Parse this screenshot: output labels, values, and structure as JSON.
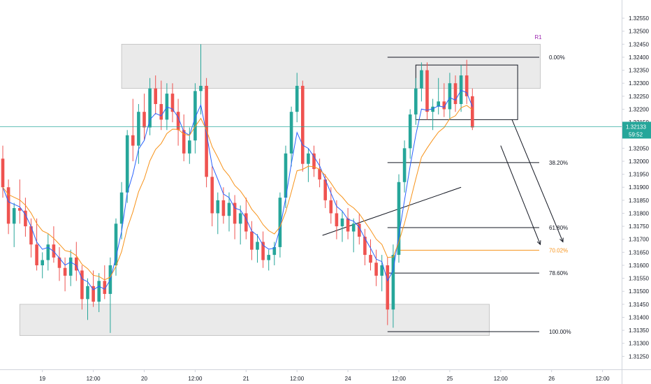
{
  "chart_data": {
    "type": "candlestick",
    "colors": {
      "up": "#26a69a",
      "down": "#ef5350",
      "ma_fast": "#2962ff",
      "ma_slow": "#f7931a",
      "zone": "#e6e6e6",
      "price_line": "#26a69a",
      "fib_orange": "#f7931a",
      "pivot": "#9c27b0"
    },
    "y_axis": {
      "range": [
        1.312,
        1.3262
      ],
      "ticks": [
        "1.32550",
        "1.32500",
        "1.32450",
        "1.32400",
        "1.32350",
        "1.32300",
        "1.32250",
        "1.32200",
        "1.32150",
        "1.32100",
        "1.32050",
        "1.32000",
        "1.31950",
        "1.31900",
        "1.31850",
        "1.31800",
        "1.31750",
        "1.31700",
        "1.31650",
        "1.31600",
        "1.31550",
        "1.31500",
        "1.31450",
        "1.31400",
        "1.31350",
        "1.31300",
        "1.31250"
      ],
      "current_price": "1.32133",
      "current_price_value": 1.32133,
      "countdown": "59:52"
    },
    "x_axis": {
      "labels": [
        "19",
        "12:00",
        "20",
        "12:00",
        "21",
        "12:00",
        "24",
        "12:00",
        "25",
        "12:00",
        "26",
        "12:00"
      ],
      "label_bars": [
        7,
        16,
        25,
        34,
        43,
        52,
        61,
        70,
        79,
        88,
        97,
        106
      ]
    },
    "zones": [
      {
        "name": "resistance",
        "bar_from": 21,
        "bar_to": 95,
        "low": 1.3228,
        "high": 1.3245
      },
      {
        "name": "support",
        "bar_from": 3,
        "bar_to": 86,
        "low": 1.3133,
        "high": 1.3145
      }
    ],
    "pivot_label": {
      "text": "R1",
      "bar": 94,
      "price": 1.3247
    },
    "fibonacci": [
      {
        "label": "0.00%",
        "price": 1.324,
        "bar_from": 68,
        "color": "#131722"
      },
      {
        "label": "38.20%",
        "price": 1.31995,
        "bar_from": 68,
        "color": "#131722"
      },
      {
        "label": "61.80%",
        "price": 1.31745,
        "bar_from": 68,
        "color": "#131722"
      },
      {
        "label": "70.02%",
        "price": 1.31658,
        "bar_from": 70,
        "color": "#f7931a"
      },
      {
        "label": "78.60%",
        "price": 1.3157,
        "bar_from": 68,
        "color": "#131722"
      },
      {
        "label": "100.00%",
        "price": 1.31345,
        "bar_from": 68,
        "color": "#131722"
      }
    ],
    "box": {
      "bar_from": 73,
      "bar_to": 91,
      "low": 1.3216,
      "high": 1.3237
    },
    "trendline": {
      "bar_from": 56.5,
      "price_from": 1.31715,
      "bar_to": 81,
      "price_to": 1.319
    },
    "arrows": [
      {
        "bar_from": 90,
        "price_from": 1.3216,
        "bar_to": 99,
        "price_to": 1.3169
      },
      {
        "bar_from": 88,
        "price_from": 1.3206,
        "bar_to": 95,
        "price_to": 1.3168
      }
    ],
    "candles": [
      [
        1.3201,
        1.3206,
        1.3186,
        1.319
      ],
      [
        1.319,
        1.3193,
        1.3172,
        1.3176
      ],
      [
        1.3176,
        1.3184,
        1.3167,
        1.3182
      ],
      [
        1.3182,
        1.3193,
        1.3176,
        1.3181
      ],
      [
        1.3181,
        1.3186,
        1.3171,
        1.3175
      ],
      [
        1.3175,
        1.3178,
        1.3163,
        1.3168
      ],
      [
        1.3168,
        1.3178,
        1.3158,
        1.316
      ],
      [
        1.316,
        1.3165,
        1.3155,
        1.3162
      ],
      [
        1.3162,
        1.3172,
        1.3158,
        1.3168
      ],
      [
        1.3168,
        1.3175,
        1.3161,
        1.3163
      ],
      [
        1.3163,
        1.3167,
        1.3154,
        1.3159
      ],
      [
        1.3159,
        1.3163,
        1.315,
        1.3156
      ],
      [
        1.3156,
        1.3166,
        1.3152,
        1.3163
      ],
      [
        1.3163,
        1.3169,
        1.3154,
        1.3158
      ],
      [
        1.3158,
        1.316,
        1.3143,
        1.3147
      ],
      [
        1.3147,
        1.3155,
        1.3139,
        1.3152
      ],
      [
        1.3152,
        1.3158,
        1.3144,
        1.3146
      ],
      [
        1.3146,
        1.3157,
        1.3142,
        1.3154
      ],
      [
        1.3154,
        1.316,
        1.3147,
        1.3149
      ],
      [
        1.3149,
        1.3163,
        1.3134,
        1.316
      ],
      [
        1.316,
        1.3178,
        1.3156,
        1.3176
      ],
      [
        1.3176,
        1.3192,
        1.317,
        1.3188
      ],
      [
        1.3188,
        1.3212,
        1.3184,
        1.321
      ],
      [
        1.321,
        1.3224,
        1.32,
        1.3206
      ],
      [
        1.3206,
        1.3222,
        1.3199,
        1.3219
      ],
      [
        1.3219,
        1.3226,
        1.3208,
        1.3213
      ],
      [
        1.3213,
        1.3232,
        1.321,
        1.3228
      ],
      [
        1.3228,
        1.3233,
        1.3218,
        1.3222
      ],
      [
        1.3222,
        1.3231,
        1.3212,
        1.3216
      ],
      [
        1.3216,
        1.323,
        1.3212,
        1.3226
      ],
      [
        1.3226,
        1.323,
        1.3215,
        1.3219
      ],
      [
        1.3219,
        1.3224,
        1.3206,
        1.3212
      ],
      [
        1.3212,
        1.3218,
        1.32,
        1.3203
      ],
      [
        1.3203,
        1.3213,
        1.3199,
        1.3208
      ],
      [
        1.3208,
        1.323,
        1.3203,
        1.3227
      ],
      [
        1.3227,
        1.3245,
        1.3218,
        1.3229
      ],
      [
        1.3229,
        1.3232,
        1.319,
        1.3194
      ],
      [
        1.3194,
        1.3198,
        1.3175,
        1.318
      ],
      [
        1.318,
        1.3188,
        1.3172,
        1.3185
      ],
      [
        1.3185,
        1.319,
        1.3176,
        1.3179
      ],
      [
        1.3179,
        1.3188,
        1.3173,
        1.3184
      ],
      [
        1.3184,
        1.3187,
        1.317,
        1.3176
      ],
      [
        1.3176,
        1.3183,
        1.3168,
        1.318
      ],
      [
        1.318,
        1.3186,
        1.317,
        1.3173
      ],
      [
        1.3173,
        1.3177,
        1.3162,
        1.3166
      ],
      [
        1.3166,
        1.3172,
        1.3161,
        1.3169
      ],
      [
        1.3169,
        1.3173,
        1.3159,
        1.3162
      ],
      [
        1.3162,
        1.3166,
        1.3158,
        1.3164
      ],
      [
        1.3164,
        1.3169,
        1.316,
        1.3167
      ],
      [
        1.3167,
        1.3188,
        1.3163,
        1.3186
      ],
      [
        1.3186,
        1.3206,
        1.3182,
        1.3203
      ],
      [
        1.3203,
        1.3221,
        1.3198,
        1.3219
      ],
      [
        1.3219,
        1.3234,
        1.3215,
        1.3229
      ],
      [
        1.3229,
        1.3231,
        1.3196,
        1.3199
      ],
      [
        1.3199,
        1.3205,
        1.3192,
        1.3203
      ],
      [
        1.3203,
        1.3206,
        1.3194,
        1.3197
      ],
      [
        1.3197,
        1.3201,
        1.319,
        1.3193
      ],
      [
        1.3193,
        1.3195,
        1.3182,
        1.3185
      ],
      [
        1.3185,
        1.319,
        1.3176,
        1.318
      ],
      [
        1.318,
        1.3185,
        1.317,
        1.3175
      ],
      [
        1.3175,
        1.3181,
        1.3169,
        1.3178
      ],
      [
        1.3178,
        1.3182,
        1.317,
        1.3173
      ],
      [
        1.3173,
        1.3178,
        1.3165,
        1.3176
      ],
      [
        1.3176,
        1.318,
        1.3168,
        1.3171
      ],
      [
        1.3171,
        1.3174,
        1.316,
        1.3164
      ],
      [
        1.3164,
        1.317,
        1.3158,
        1.3161
      ],
      [
        1.3161,
        1.3166,
        1.3152,
        1.3156
      ],
      [
        1.3156,
        1.3164,
        1.315,
        1.316
      ],
      [
        1.316,
        1.3163,
        1.3137,
        1.3143
      ],
      [
        1.3143,
        1.3168,
        1.3136,
        1.3164
      ],
      [
        1.3164,
        1.3195,
        1.3161,
        1.3192
      ],
      [
        1.3192,
        1.3208,
        1.3188,
        1.3205
      ],
      [
        1.3205,
        1.322,
        1.3201,
        1.3218
      ],
      [
        1.3218,
        1.3232,
        1.3214,
        1.3228
      ],
      [
        1.3228,
        1.3238,
        1.3223,
        1.3235
      ],
      [
        1.3235,
        1.3238,
        1.3216,
        1.3219
      ],
      [
        1.3219,
        1.3224,
        1.3212,
        1.3221
      ],
      [
        1.3221,
        1.3232,
        1.3218,
        1.3223
      ],
      [
        1.3223,
        1.323,
        1.3217,
        1.322
      ],
      [
        1.322,
        1.3234,
        1.3216,
        1.323
      ],
      [
        1.323,
        1.3233,
        1.3219,
        1.3222
      ],
      [
        1.3222,
        1.3237,
        1.3219,
        1.3233
      ],
      [
        1.3233,
        1.3239,
        1.3222,
        1.3225
      ],
      [
        1.3225,
        1.3228,
        1.3212,
        1.3213
      ]
    ]
  }
}
